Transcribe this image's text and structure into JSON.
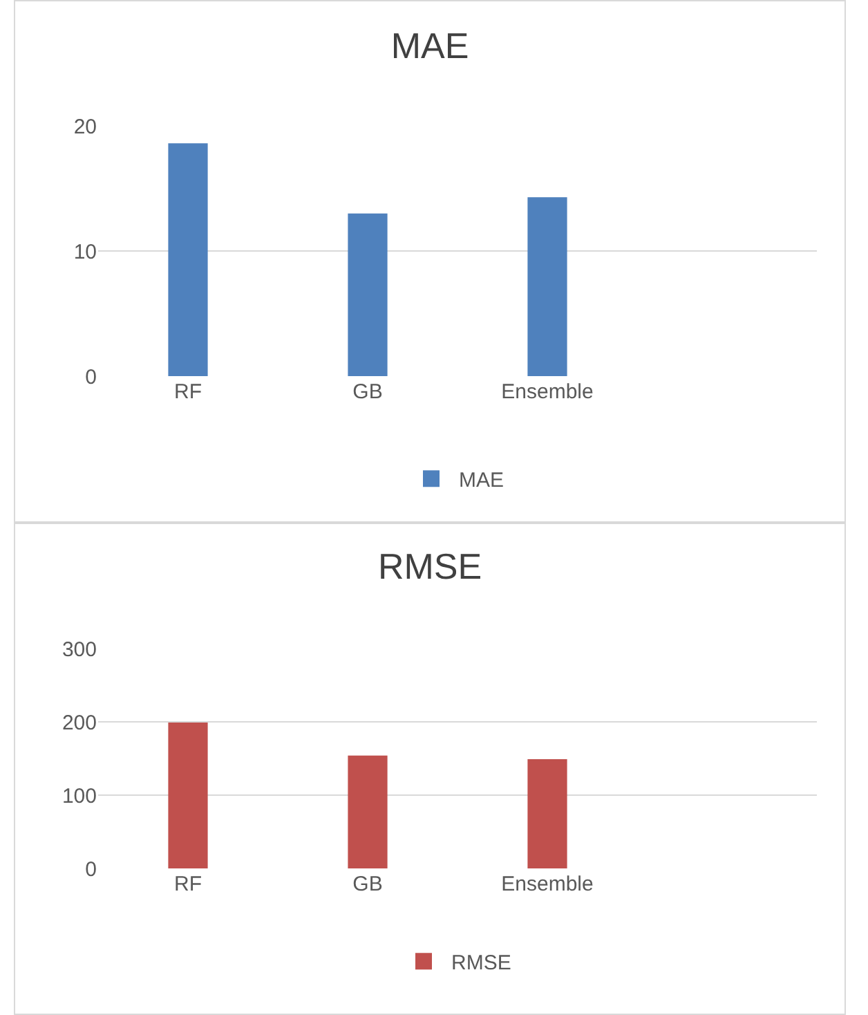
{
  "chart_data": [
    {
      "type": "bar",
      "title": "MAE",
      "categories": [
        "RF",
        "GB",
        "Ensemble",
        null
      ],
      "series": [
        {
          "name": "MAE",
          "color": "#4f81bd",
          "values": [
            18.6,
            13.0,
            14.3,
            null
          ]
        }
      ],
      "ylim": [
        0,
        20
      ],
      "yticks": [
        0,
        10,
        20
      ],
      "grid": "y",
      "legend": "bottom"
    },
    {
      "type": "bar",
      "title": "RMSE",
      "categories": [
        "RF",
        "GB",
        "Ensemble",
        null
      ],
      "series": [
        {
          "name": "RMSE",
          "color": "#c0504d",
          "values": [
            199,
            154,
            149,
            null
          ]
        }
      ],
      "ylim": [
        0,
        300
      ],
      "yticks": [
        0,
        100,
        200,
        300
      ],
      "grid": "y",
      "legend": "bottom"
    }
  ]
}
